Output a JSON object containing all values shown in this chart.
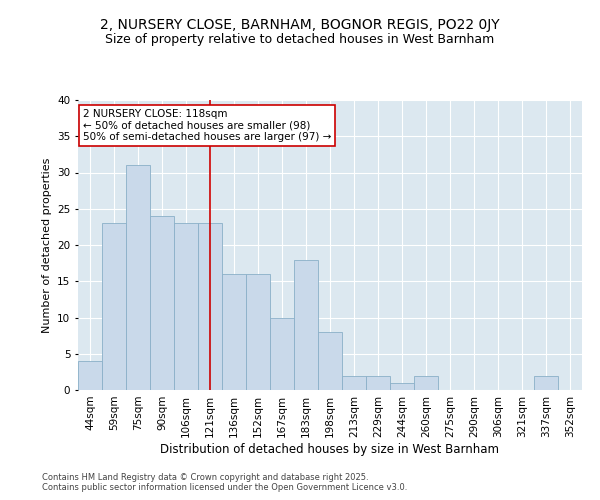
{
  "title1": "2, NURSERY CLOSE, BARNHAM, BOGNOR REGIS, PO22 0JY",
  "title2": "Size of property relative to detached houses in West Barnham",
  "xlabel": "Distribution of detached houses by size in West Barnham",
  "ylabel": "Number of detached properties",
  "categories": [
    "44sqm",
    "59sqm",
    "75sqm",
    "90sqm",
    "106sqm",
    "121sqm",
    "136sqm",
    "152sqm",
    "167sqm",
    "183sqm",
    "198sqm",
    "213sqm",
    "229sqm",
    "244sqm",
    "260sqm",
    "275sqm",
    "290sqm",
    "306sqm",
    "321sqm",
    "337sqm",
    "352sqm"
  ],
  "values": [
    4,
    23,
    31,
    24,
    23,
    23,
    16,
    16,
    10,
    18,
    8,
    2,
    2,
    1,
    2,
    0,
    0,
    0,
    0,
    2,
    0
  ],
  "bar_color": "#c9d9ea",
  "bar_edgecolor": "#8aafc8",
  "vline_x": 5,
  "vline_color": "#cc0000",
  "annotation_text": "2 NURSERY CLOSE: 118sqm\n← 50% of detached houses are smaller (98)\n50% of semi-detached houses are larger (97) →",
  "annotation_box_edgecolor": "#cc0000",
  "ylim": [
    0,
    40
  ],
  "yticks": [
    0,
    5,
    10,
    15,
    20,
    25,
    30,
    35,
    40
  ],
  "background_color": "#dce8f0",
  "footnote": "Contains HM Land Registry data © Crown copyright and database right 2025.\nContains public sector information licensed under the Open Government Licence v3.0.",
  "title1_fontsize": 10,
  "title2_fontsize": 9,
  "xlabel_fontsize": 8.5,
  "ylabel_fontsize": 8,
  "tick_fontsize": 7.5,
  "annot_fontsize": 7.5,
  "footnote_fontsize": 6,
  "footnote_color": "#444444"
}
